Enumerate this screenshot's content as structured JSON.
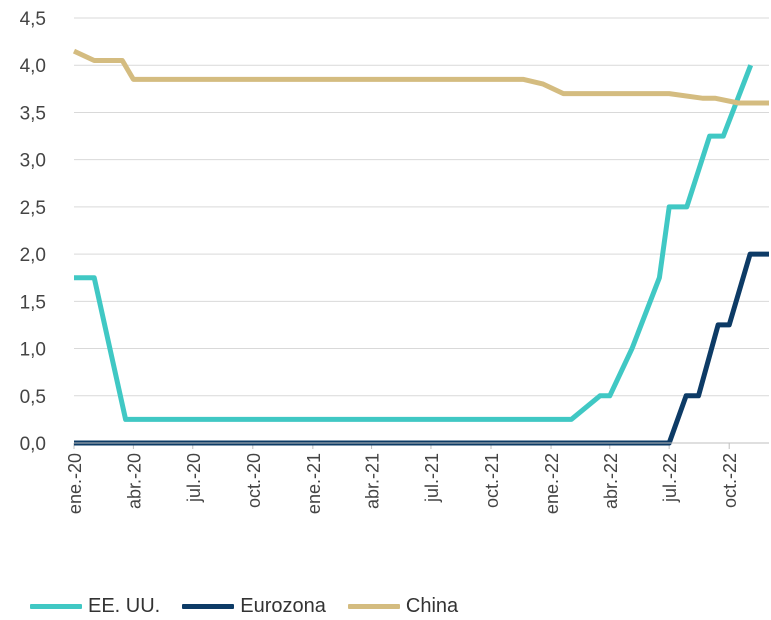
{
  "chart_data": {
    "type": "line",
    "title": "",
    "xlabel": "",
    "ylabel": "",
    "ylim": [
      0,
      4.5
    ],
    "yticks": [
      "0,0",
      "0,5",
      "1,0",
      "1,5",
      "2,0",
      "2,5",
      "3,0",
      "3,5",
      "4,0",
      "4,5"
    ],
    "xticks": [
      "ene.-20",
      "abr.-20",
      "jul.-20",
      "oct.-20",
      "ene.-21",
      "abr.-21",
      "jul.-21",
      "oct.-21",
      "ene.-22",
      "abr.-22",
      "jul.-22",
      "oct.-22"
    ],
    "grid": "horizontal",
    "legend_position": "bottom",
    "series": [
      {
        "name": "EE. UU.",
        "color": "#40C8C4",
        "points": [
          [
            "2020-01-01",
            1.75
          ],
          [
            "2020-02-01",
            1.75
          ],
          [
            "2020-03-20",
            0.25
          ],
          [
            "2022-02-01",
            0.25
          ],
          [
            "2022-03-17",
            0.5
          ],
          [
            "2022-04-01",
            0.5
          ],
          [
            "2022-05-05",
            1.0
          ],
          [
            "2022-06-16",
            1.75
          ],
          [
            "2022-07-01",
            2.5
          ],
          [
            "2022-07-28",
            2.5
          ],
          [
            "2022-09-01",
            3.25
          ],
          [
            "2022-09-22",
            3.25
          ],
          [
            "2022-11-03",
            4.0
          ]
        ]
      },
      {
        "name": "Eurozona",
        "color": "#0D3B66",
        "points": [
          [
            "2020-01-01",
            0.0
          ],
          [
            "2022-07-01",
            0.0
          ],
          [
            "2022-07-27",
            0.5
          ],
          [
            "2022-08-15",
            0.5
          ],
          [
            "2022-09-14",
            1.25
          ],
          [
            "2022-10-01",
            1.25
          ],
          [
            "2022-11-02",
            2.0
          ],
          [
            "2022-12-01",
            2.0
          ]
        ]
      },
      {
        "name": "China",
        "color": "#D4BC80",
        "points": [
          [
            "2020-01-01",
            4.15
          ],
          [
            "2020-02-01",
            4.05
          ],
          [
            "2020-03-15",
            4.05
          ],
          [
            "2020-04-01",
            3.85
          ],
          [
            "2021-11-20",
            3.85
          ],
          [
            "2021-12-20",
            3.8
          ],
          [
            "2022-01-20",
            3.7
          ],
          [
            "2022-07-01",
            3.7
          ],
          [
            "2022-08-22",
            3.65
          ],
          [
            "2022-09-10",
            3.65
          ],
          [
            "2022-10-15",
            3.6
          ],
          [
            "2022-12-01",
            3.6
          ]
        ]
      }
    ]
  },
  "legend": {
    "items": [
      {
        "label": "EE. UU.",
        "color": "#40C8C4"
      },
      {
        "label": "Eurozona",
        "color": "#0D3B66"
      },
      {
        "label": "China",
        "color": "#D4BC80"
      }
    ]
  }
}
